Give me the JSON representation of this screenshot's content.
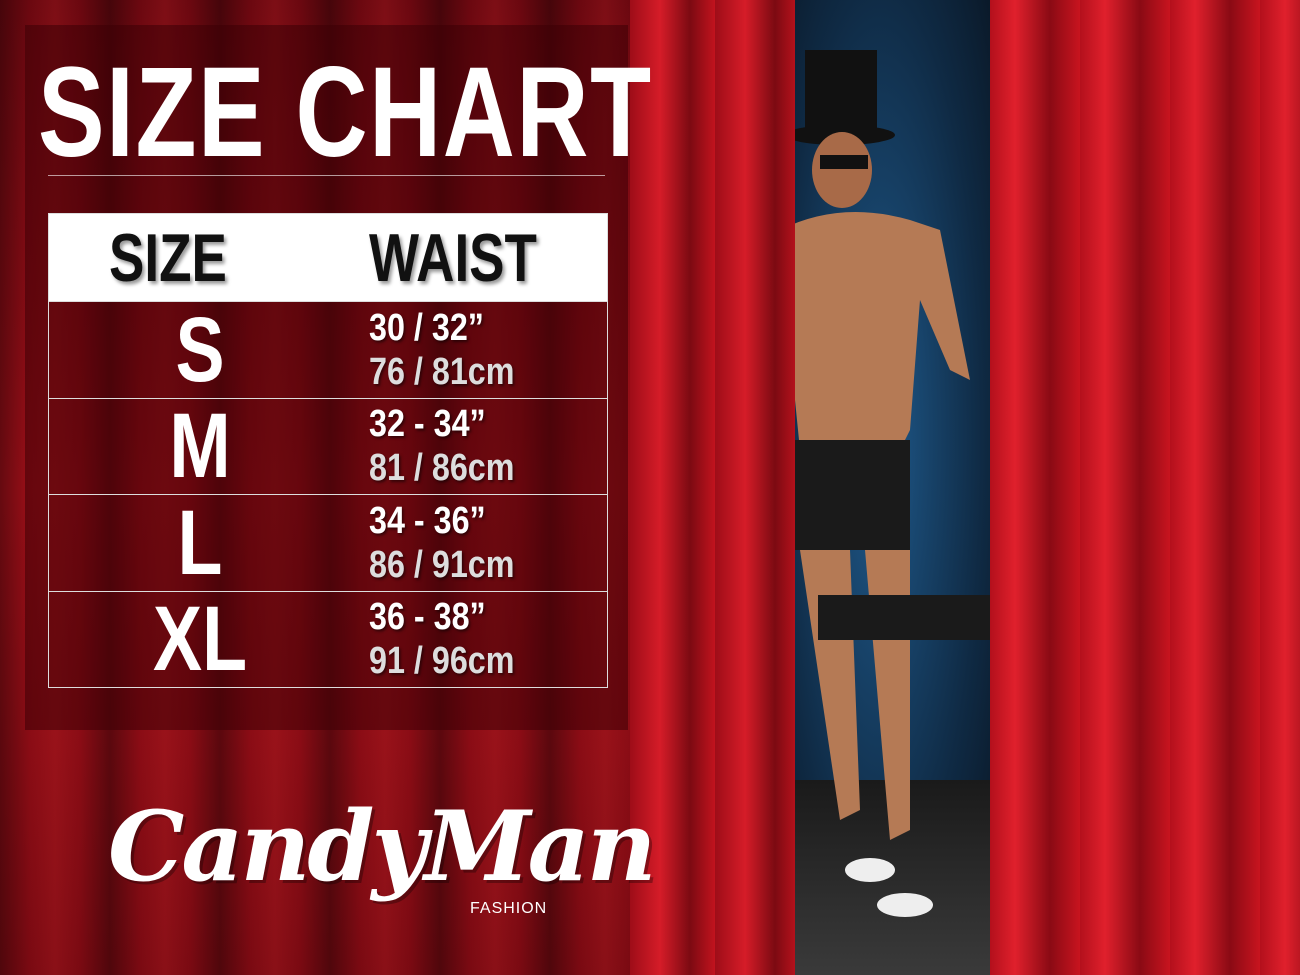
{
  "title": "SIZE CHART",
  "table": {
    "headers": [
      "SIZE",
      "WAIST"
    ],
    "rows": [
      {
        "size": "S",
        "inches": "30 / 32”",
        "cm": "76 / 81cm"
      },
      {
        "size": "M",
        "inches": "32 - 34”",
        "cm": "81 / 86cm"
      },
      {
        "size": "L",
        "inches": "34 - 36”",
        "cm": "86 / 91cm"
      },
      {
        "size": "XL",
        "inches": "36 - 38”",
        "cm": "91 / 96cm"
      }
    ]
  },
  "brand": {
    "name": "CandyMan",
    "sub": "FASHION"
  },
  "colors": {
    "curtain": "#c8141f",
    "panel": "#3c0006",
    "text": "#ffffff"
  }
}
